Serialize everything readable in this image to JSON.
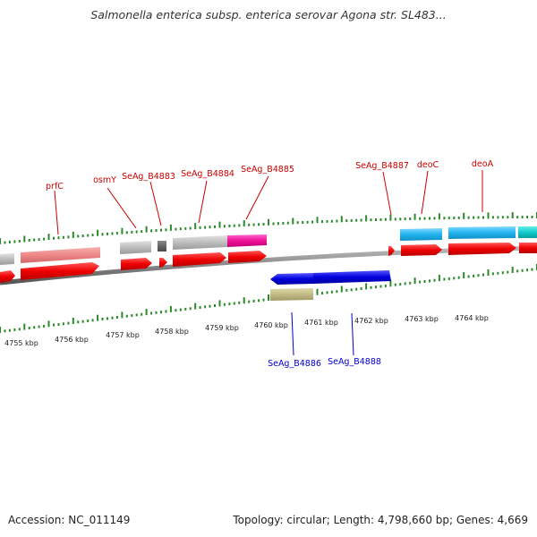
{
  "title": "Salmonella enterica subsp. enterica serovar Agona str. SL483...",
  "footer": {
    "accession": "Accession: NC_011149",
    "summary": "Topology: circular; Length: 4,798,660 bp; Genes: 4,669"
  },
  "colors": {
    "forward_label": "#cc0000",
    "reverse_label": "#0000cc",
    "cds_forward": "#ee0000",
    "cds_reverse": "#0000dd",
    "tick": "#2a8a2a",
    "backbone": "#888888"
  },
  "scale": {
    "unit": "kbp",
    "labels": [
      "4755 kbp",
      "4756 kbp",
      "4757 kbp",
      "4758 kbp",
      "4759 kbp",
      "4760 kbp",
      "4761 kbp",
      "4762 kbp",
      "4763 kbp",
      "4764 kbp"
    ]
  },
  "gene_labels": {
    "forward": [
      "prfC",
      "osmY",
      "SeAg_B4883",
      "SeAg_B4884",
      "SeAg_B4885",
      "SeAg_B4887",
      "deoC",
      "deoA"
    ],
    "reverse": [
      "SeAg_B4886",
      "SeAg_B4888"
    ]
  }
}
